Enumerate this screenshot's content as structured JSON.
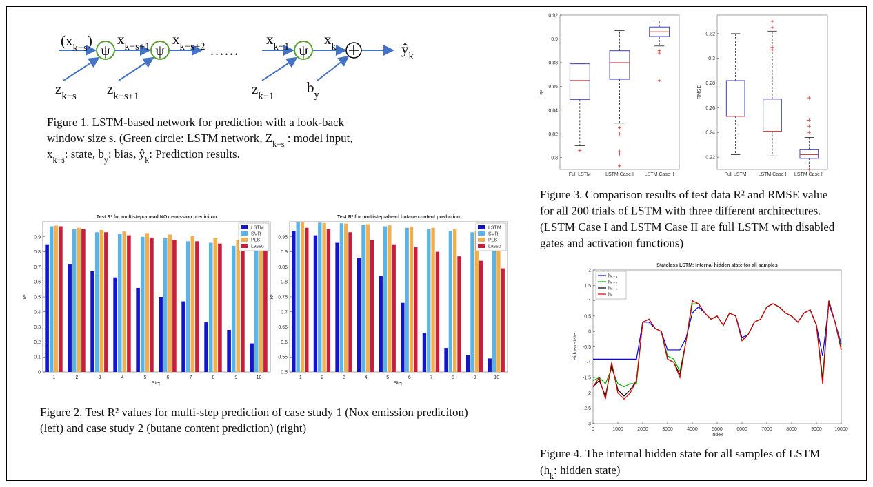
{
  "figure1": {
    "labels": [
      {
        "main": "(x",
        "sub": "k−s",
        "suffix": ")"
      },
      {
        "main": "x",
        "sub": "k−s+1"
      },
      {
        "main": "x",
        "sub": "k−s+2"
      },
      {
        "main": "x",
        "sub": "k−1"
      },
      {
        "main": "x",
        "sub": "k"
      },
      {
        "main": "ŷ",
        "sub": "k"
      },
      {
        "main": "z",
        "sub": "k−s"
      },
      {
        "main": "z",
        "sub": "k−s+1"
      },
      {
        "main": "z",
        "sub": "k−1"
      },
      {
        "main": "b",
        "sub": "y"
      }
    ],
    "cell": [
      "ψ",
      "ψ",
      "ψ"
    ],
    "dots": "……"
  },
  "captions": {
    "fig1": [
      [
        "Figure 1. LSTM-based network for prediction with a look-back"
      ],
      [
        "window size s. (Green circle: LSTM network, Z",
        "k−s",
        " : model input,"
      ],
      [
        "x",
        "k−s",
        ": state, b",
        "y",
        ": bias, ŷ",
        "k",
        ": Prediction results."
      ]
    ],
    "fig2": [
      [
        "Figure 2. Test R² values for multi-step prediction of case study 1 (Nox emission prediciton)"
      ],
      [
        "(left) and case study 2 (butane content prediction) (right)"
      ]
    ],
    "fig3": [
      [
        "Figure 3. Comparison results of test data R² and RMSE value"
      ],
      [
        "for all 200 trials of LSTM with three different architectures."
      ],
      [
        "(LSTM Case I and LSTM Case II are full LSTM with disabled"
      ],
      [
        "gates and activation functions)"
      ]
    ],
    "fig4": [
      [
        "Figure 4. The internal hidden state for all samples of LSTM"
      ],
      [
        "(h",
        "k",
        ": hidden state)"
      ]
    ]
  },
  "chart_data": [
    {
      "type": "bar",
      "title": "Test R² for multistep-ahead NOx emission prediciton",
      "x_label": "Step",
      "y_label": "R²",
      "categories": [
        "1",
        "2",
        "3",
        "4",
        "5",
        "6",
        "7",
        "8",
        "9",
        "10"
      ],
      "series": [
        {
          "name": "LSTM",
          "color": "#1414c8",
          "values": [
            0.85,
            0.72,
            0.67,
            0.63,
            0.56,
            0.5,
            0.47,
            0.33,
            0.28,
            0.19
          ]
        },
        {
          "name": "SVR",
          "color": "#5ab4e8",
          "values": [
            0.97,
            0.95,
            0.93,
            0.92,
            0.9,
            0.89,
            0.87,
            0.86,
            0.84,
            0.83
          ]
        },
        {
          "name": "PLS",
          "color": "#f0b050",
          "values": [
            0.975,
            0.96,
            0.945,
            0.935,
            0.925,
            0.915,
            0.905,
            0.89,
            0.88,
            0.87
          ]
        },
        {
          "name": "Lasso",
          "color": "#c8203c",
          "values": [
            0.97,
            0.95,
            0.93,
            0.91,
            0.895,
            0.88,
            0.87,
            0.855,
            0.845,
            0.83
          ]
        }
      ],
      "ylim": [
        0,
        1
      ],
      "yticks": [
        0,
        0.1,
        0.2,
        0.3,
        0.4,
        0.5,
        0.6,
        0.7,
        0.8,
        0.9
      ],
      "legend": "upper right"
    },
    {
      "type": "bar",
      "title": "Test R² for multistep-ahead butane content prediction",
      "x_label": "Step",
      "y_label": "R²",
      "categories": [
        "1",
        "2",
        "3",
        "4",
        "5",
        "6",
        "7",
        "8",
        "9",
        "10"
      ],
      "series": [
        {
          "name": "LSTM",
          "color": "#1414c8",
          "values": [
            0.97,
            0.955,
            0.93,
            0.88,
            0.82,
            0.73,
            0.63,
            0.58,
            0.555,
            0.545
          ]
        },
        {
          "name": "SVR",
          "color": "#5ab4e8",
          "values": [
            0.998,
            0.997,
            0.995,
            0.99,
            0.985,
            0.98,
            0.975,
            0.97,
            0.965,
            0.96
          ]
        },
        {
          "name": "PLS",
          "color": "#f0b050",
          "values": [
            0.998,
            0.996,
            0.994,
            0.992,
            0.988,
            0.984,
            0.98,
            0.975,
            0.97,
            0.965
          ]
        },
        {
          "name": "Lasso",
          "color": "#c8203c",
          "values": [
            0.98,
            0.975,
            0.965,
            0.94,
            0.925,
            0.915,
            0.9,
            0.885,
            0.87,
            0.845
          ]
        }
      ],
      "ylim": [
        0.5,
        1
      ],
      "yticks": [
        0.5,
        0.55,
        0.6,
        0.65,
        0.7,
        0.75,
        0.8,
        0.85,
        0.9,
        0.95
      ],
      "legend": "upper right"
    },
    {
      "type": "box",
      "y_label": "R²",
      "categories": [
        "Full LSTM",
        "LSTM Case I",
        "LSTM Case II"
      ],
      "box_color": "#4040c8",
      "median_color": "#e04040",
      "boxes": [
        {
          "low": 0.81,
          "q1": 0.849,
          "median": 0.865,
          "q3": 0.879,
          "high": 0.879,
          "outliers": [
            0.806
          ]
        },
        {
          "low": 0.829,
          "q1": 0.866,
          "median": 0.88,
          "q3": 0.89,
          "high": 0.907,
          "outliers": [
            0.805,
            0.803,
            0.793,
            0.82,
            0.825
          ]
        },
        {
          "low": 0.894,
          "q1": 0.902,
          "median": 0.906,
          "q3": 0.91,
          "high": 0.915,
          "outliers": [
            0.888,
            0.889,
            0.89,
            0.865
          ]
        }
      ],
      "ylim": [
        0.79,
        0.92
      ],
      "yticks": [
        0.8,
        0.82,
        0.84,
        0.86,
        0.88,
        0.9,
        0.92
      ]
    },
    {
      "type": "box",
      "y_label": "RMSE",
      "categories": [
        "Full LSTM",
        "LSTM Case I",
        "LSTM Case II"
      ],
      "box_color": "#4040c8",
      "median_color": "#e04040",
      "boxes": [
        {
          "low": 0.222,
          "q1": 0.253,
          "median": 0.253,
          "q3": 0.282,
          "high": 0.32,
          "outliers": []
        },
        {
          "low": 0.221,
          "q1": 0.241,
          "median": 0.241,
          "q3": 0.267,
          "high": 0.322,
          "outliers": [
            0.307,
            0.309,
            0.325,
            0.33
          ]
        },
        {
          "low": 0.212,
          "q1": 0.219,
          "median": 0.222,
          "q3": 0.226,
          "high": 0.236,
          "outliers": [
            0.24,
            0.245,
            0.25,
            0.268,
            0.21
          ]
        }
      ],
      "ylim": [
        0.21,
        0.335
      ],
      "yticks": [
        0.22,
        0.24,
        0.26,
        0.28,
        0.3,
        0.32
      ]
    },
    {
      "type": "line",
      "title": "Stateless LSTM: Internal hidden state for all samples",
      "x_label": "Index",
      "y_label": "Hidden state",
      "x": [
        0,
        250,
        500,
        750,
        1000,
        1250,
        1500,
        1750,
        2000,
        2250,
        2500,
        2750,
        3000,
        3250,
        3500,
        3750,
        4000,
        4250,
        4500,
        4750,
        5000,
        5250,
        5500,
        5750,
        6000,
        6250,
        6500,
        6750,
        7000,
        7250,
        7500,
        7750,
        8000,
        8250,
        8500,
        8750,
        9000,
        9250,
        9500,
        9750,
        10000
      ],
      "series": [
        {
          "name": "hₖ₋₃",
          "color": "#0000ff",
          "values": [
            -0.9,
            -0.9,
            -0.9,
            -0.9,
            -0.9,
            -0.9,
            -0.9,
            -0.9,
            0.3,
            0.3,
            0.1,
            0.0,
            -0.6,
            -0.6,
            -0.6,
            -0.2,
            0.6,
            0.8,
            0.6,
            0.4,
            0.5,
            0.2,
            0.6,
            0.5,
            -0.2,
            -0.1,
            0.3,
            0.4,
            0.8,
            0.9,
            0.8,
            0.6,
            0.5,
            0.3,
            0.6,
            0.7,
            0.2,
            -0.8,
            0.9,
            0.3,
            -0.4
          ]
        },
        {
          "name": "hₖ₋₂",
          "color": "#00b000",
          "values": [
            -1.6,
            -1.5,
            -1.7,
            -1.2,
            -1.7,
            -1.8,
            -1.7,
            -1.7,
            0.3,
            0.4,
            0.1,
            0.0,
            -0.8,
            -0.9,
            -1.3,
            -0.3,
            0.9,
            0.9,
            0.6,
            0.4,
            0.5,
            0.2,
            0.6,
            0.5,
            -0.3,
            -0.1,
            0.3,
            0.4,
            0.8,
            0.9,
            0.8,
            0.6,
            0.5,
            0.3,
            0.6,
            0.7,
            0.2,
            -1.5,
            1.0,
            0.3,
            -0.5
          ]
        },
        {
          "name": "hₖ₋₁",
          "color": "#000000",
          "values": [
            -1.8,
            -1.6,
            -2.1,
            -1.1,
            -1.9,
            -2.1,
            -1.9,
            -1.6,
            0.3,
            0.4,
            0.1,
            0.0,
            -0.9,
            -1.0,
            -1.4,
            -0.3,
            1.0,
            0.9,
            0.6,
            0.4,
            0.5,
            0.2,
            0.6,
            0.5,
            -0.3,
            -0.1,
            0.3,
            0.4,
            0.8,
            0.9,
            0.8,
            0.6,
            0.5,
            0.3,
            0.6,
            0.7,
            0.2,
            -1.6,
            1.0,
            0.3,
            -0.6
          ]
        },
        {
          "name": "hₖ",
          "color": "#e00000",
          "values": [
            -1.8,
            -1.5,
            -2.2,
            -1.0,
            -2.0,
            -2.2,
            -2.0,
            -1.6,
            0.3,
            0.4,
            0.1,
            0.0,
            -0.9,
            -1.0,
            -1.5,
            -0.3,
            1.0,
            0.9,
            0.6,
            0.4,
            0.5,
            0.2,
            0.6,
            0.5,
            -0.3,
            -0.1,
            0.3,
            0.4,
            0.8,
            0.9,
            0.8,
            0.6,
            0.5,
            0.3,
            0.6,
            0.7,
            0.2,
            -1.7,
            1.0,
            0.3,
            -0.6
          ]
        }
      ],
      "xlim": [
        0,
        10000
      ],
      "xticks": [
        0,
        1000,
        2000,
        3000,
        4000,
        5000,
        6000,
        7000,
        8000,
        9000,
        10000
      ],
      "ylim": [
        -3,
        2
      ],
      "yticks": [
        -3,
        -2.5,
        -2,
        -1.5,
        -1,
        -0.5,
        0,
        0.5,
        1,
        1.5,
        2
      ],
      "legend": "upper left"
    }
  ]
}
